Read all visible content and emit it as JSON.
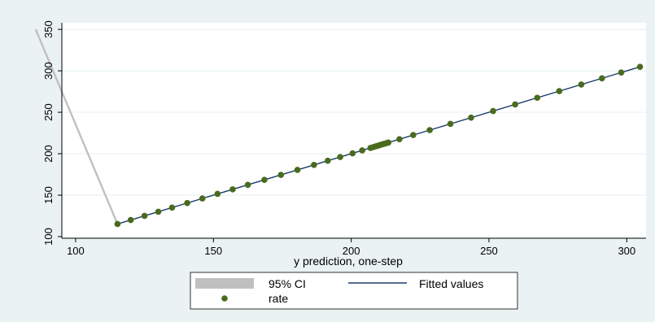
{
  "chart_data": {
    "type": "scatter",
    "title": "",
    "xlabel": "y prediction, one-step",
    "ylabel": "",
    "xlim": [
      95,
      307
    ],
    "ylim": [
      98,
      358
    ],
    "x_ticks": [
      100,
      150,
      200,
      250,
      300
    ],
    "y_ticks": [
      100,
      150,
      200,
      250,
      300,
      350
    ],
    "grid": "horizontal",
    "legend_position": "bottom",
    "ci_band": {
      "name": "95% CI",
      "color": "#c0c0c0",
      "x": [
        85.5,
        115.2
      ],
      "y": [
        350,
        115.2
      ]
    },
    "fitted_line": {
      "name": "Fitted values",
      "color": "#1a3a6b",
      "x": [
        115.2,
        304.8
      ],
      "y": [
        115.2,
        304.8
      ]
    },
    "scatter": {
      "name": "rate",
      "color": "#4a6b1e",
      "points": [
        [
          115.2,
          115.2
        ],
        [
          120,
          120
        ],
        [
          125,
          125
        ],
        [
          130,
          130
        ],
        [
          135,
          135
        ],
        [
          140.5,
          140.5
        ],
        [
          146,
          146
        ],
        [
          151.5,
          151.5
        ],
        [
          157,
          157
        ],
        [
          162.5,
          162.5
        ],
        [
          168.5,
          168.5
        ],
        [
          174.5,
          174.5
        ],
        [
          180.5,
          180.5
        ],
        [
          186.5,
          186.5
        ],
        [
          191.5,
          191.5
        ],
        [
          196,
          196
        ],
        [
          200.5,
          200.5
        ],
        [
          204,
          204
        ],
        [
          207,
          207
        ],
        [
          208,
          208
        ],
        [
          208.8,
          208.8
        ],
        [
          209.6,
          209.6
        ],
        [
          210.4,
          210.4
        ],
        [
          211.2,
          211.2
        ],
        [
          212,
          212
        ],
        [
          212.8,
          212.8
        ],
        [
          213.5,
          213.5
        ],
        [
          217.5,
          217.5
        ],
        [
          222.5,
          222.5
        ],
        [
          228.5,
          228.5
        ],
        [
          236,
          236
        ],
        [
          243.5,
          243.5
        ],
        [
          251.5,
          251.5
        ],
        [
          259.5,
          259.5
        ],
        [
          267.5,
          267.5
        ],
        [
          275.5,
          275.5
        ],
        [
          283.5,
          283.5
        ],
        [
          291,
          291
        ],
        [
          298,
          298
        ],
        [
          304.8,
          304.8
        ]
      ]
    }
  }
}
